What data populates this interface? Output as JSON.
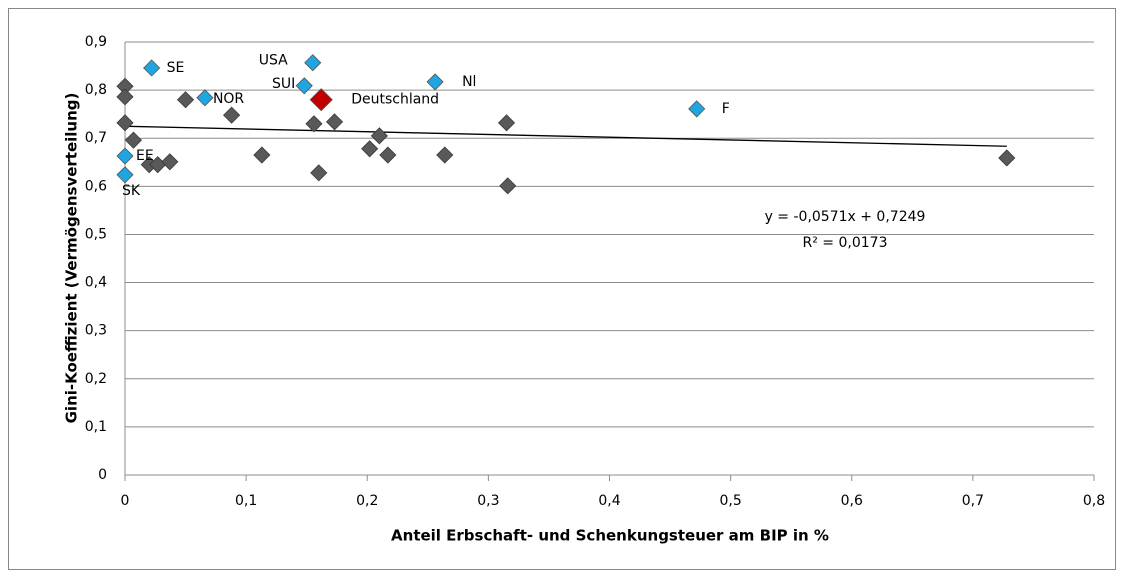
{
  "chart_data": {
    "type": "scatter",
    "x_label": "Anteil Erbschaft- und Schenkungsteuer am BIP in %",
    "y_label": "Gini-Koeffizient (Vermögensverteilung)",
    "xlim": [
      0,
      0.8
    ],
    "ylim": [
      0,
      0.9
    ],
    "xticks": [
      0,
      {
        "value": 0.1,
        "label": "0,1"
      },
      {
        "value": 0.2,
        "label": "0,2"
      },
      {
        "value": 0.3,
        "label": "0,3"
      },
      {
        "value": 0.4,
        "label": "0,4"
      },
      {
        "value": 0.5,
        "label": "0,5"
      },
      {
        "value": 0.6,
        "label": "0,6"
      },
      {
        "value": 0.7,
        "label": "0,7"
      },
      {
        "value": 0.8,
        "label": "0,8"
      }
    ],
    "yticks": [
      0,
      {
        "value": 0.1,
        "label": "0,1"
      },
      {
        "value": 0.2,
        "label": "0,2"
      },
      {
        "value": 0.3,
        "label": "0,3"
      },
      {
        "value": 0.4,
        "label": "0,4"
      },
      {
        "value": 0.5,
        "label": "0,5"
      },
      {
        "value": 0.6,
        "label": "0,6"
      },
      {
        "value": 0.7,
        "label": "0,7"
      },
      {
        "value": 0.8,
        "label": "0,8"
      },
      {
        "value": 0.9,
        "label": "0,9"
      }
    ],
    "grid": true,
    "series": [
      {
        "color": "#595959",
        "x": [
          0,
          0,
          0,
          0.007,
          0.02,
          0.027,
          0.037,
          0.05,
          0.088,
          0.113,
          0.156,
          0.16,
          0.173,
          0.202,
          0.21,
          0.217,
          0.264,
          0.315,
          0.316,
          0.728
        ],
        "y": [
          0.808,
          0.786,
          0.732,
          0.696,
          0.645,
          0.645,
          0.651,
          0.78,
          0.748,
          0.665,
          0.73,
          0.628,
          0.734,
          0.678,
          0.705,
          0.665,
          0.665,
          0.732,
          0.601,
          0.659
        ]
      },
      {
        "color": "#1fa5e0",
        "x": [
          0.022,
          0.155,
          0.148,
          0.066,
          0.256,
          0.472,
          0,
          0
        ],
        "y": [
          0.846,
          0.857,
          0.809,
          0.784,
          0.817,
          0.761,
          0.663,
          0.624
        ],
        "labels": [
          "SE",
          "USA",
          "SUI",
          "NOR",
          "Nl",
          "F",
          "EE",
          "SK"
        ]
      },
      {
        "color": "#c00000",
        "x": [
          0.162
        ],
        "y": [
          0.78
        ],
        "labels": [
          "Deutschland"
        ]
      }
    ],
    "trendline": {
      "slope": -0.0571,
      "intercept": 0.7249,
      "equation": "y = -0,0571x + 0,7249",
      "r2": "R² = 0,0173"
    }
  }
}
